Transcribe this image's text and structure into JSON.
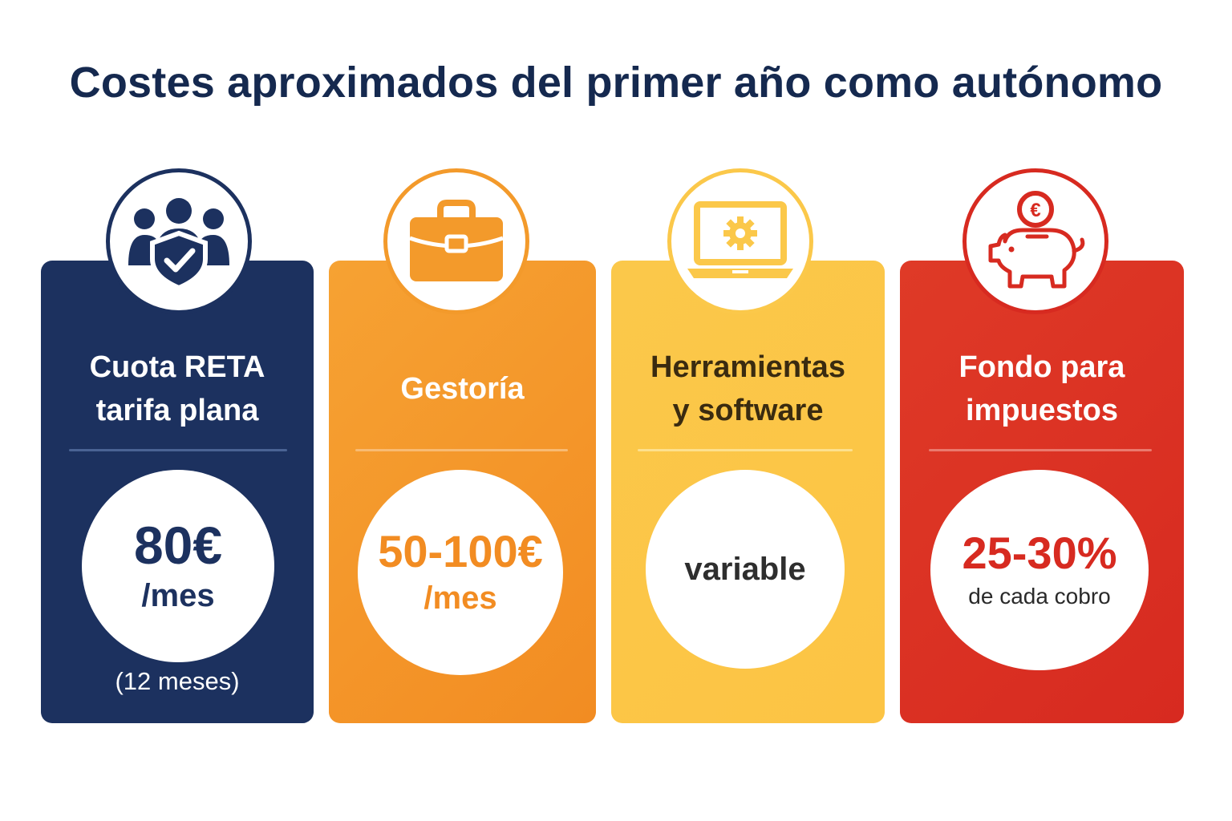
{
  "title": "Costes aproximados del primer año como autónomo",
  "cards": [
    {
      "icon": "shield-people-icon",
      "label_line1": "Cuota RETA",
      "label_line2": "tarifa plana",
      "value": "80€",
      "unit": "/mes",
      "note": "(12 meses)",
      "color": "#1c315f"
    },
    {
      "icon": "briefcase-icon",
      "label_line1": "Gestoría",
      "label_line2": "",
      "value": "50-100€",
      "unit": "/mes",
      "color": "#f28c22"
    },
    {
      "icon": "laptop-gear-icon",
      "label_line1": "Herramientas",
      "label_line2": "y software",
      "value": "variable",
      "color": "#fcc444"
    },
    {
      "icon": "piggy-bank-euro-icon",
      "label_line1": "Fondo para",
      "label_line2": "impuestos",
      "value": "25-30%",
      "unit": "de cada cobro",
      "color": "#d72a20"
    }
  ]
}
